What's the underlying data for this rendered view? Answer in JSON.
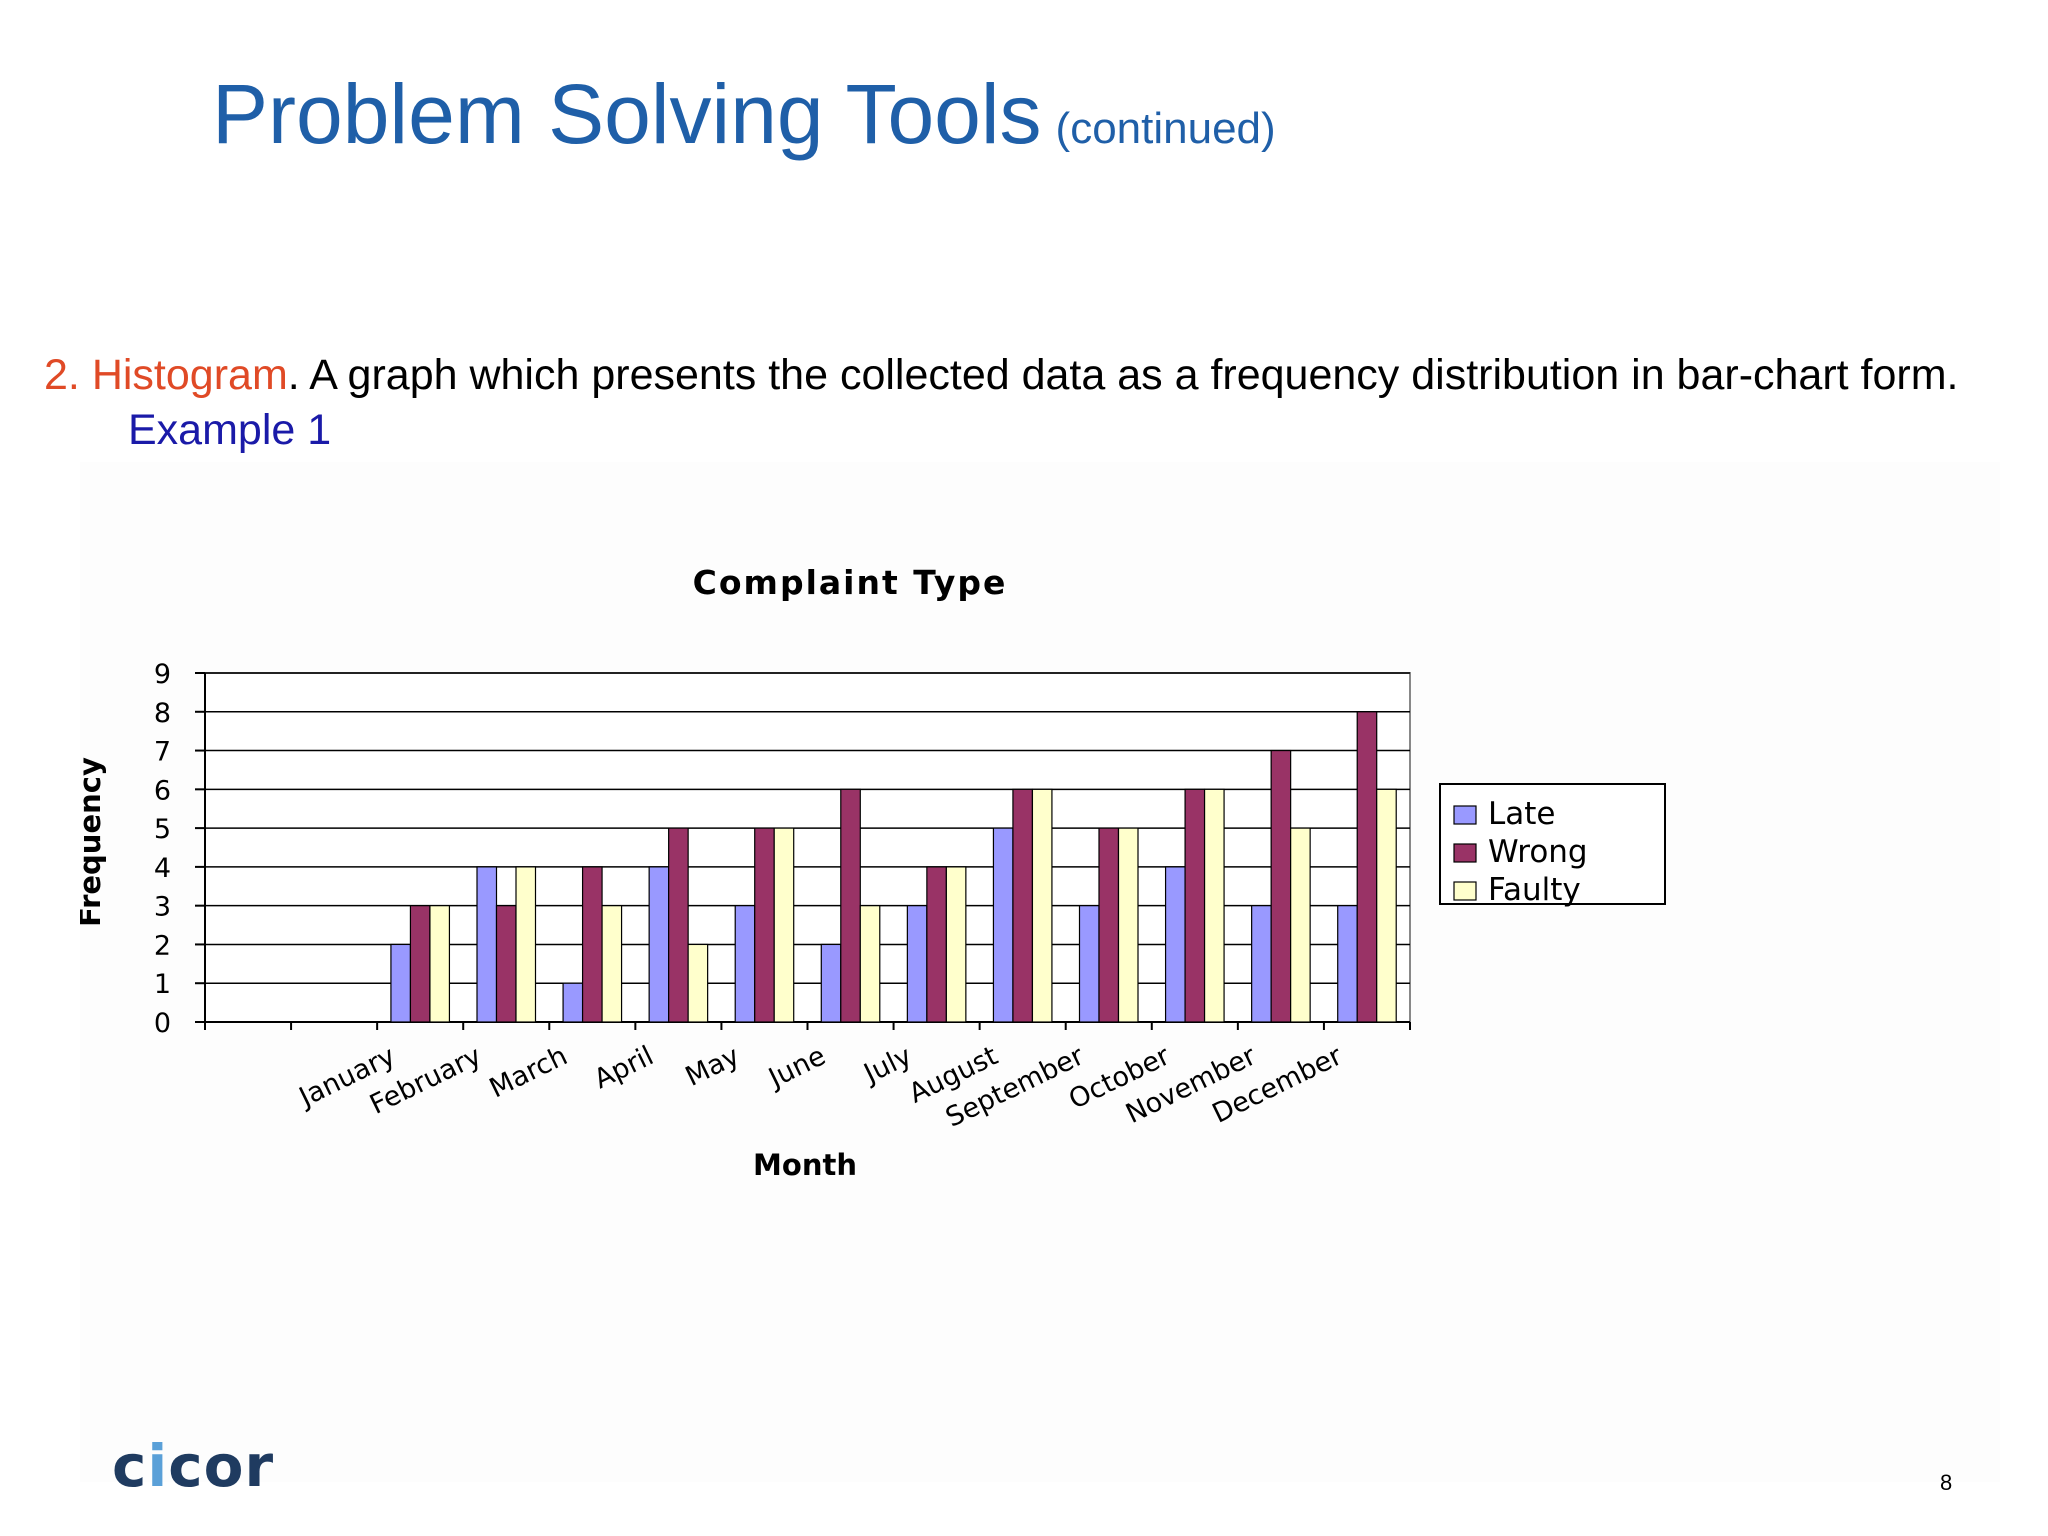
{
  "slide": {
    "title": "Problem Solving Tools",
    "title_sub": "(continued)",
    "item_number": "2.",
    "item_term": "Histogram",
    "item_text": ".  A graph which presents the collected data as a frequency distribution in bar-chart form.",
    "item_link": "Example 1",
    "page_number": "8",
    "logo": {
      "before": "c",
      "accent": "i",
      "after": "cor"
    }
  },
  "colors": {
    "title": "#1f5fa8",
    "term": "#e04a26",
    "link": "#1a1aa8"
  },
  "chart_data": {
    "type": "bar",
    "title": "Complaint Type",
    "xlabel": "Month",
    "ylabel": "Frequency",
    "ylim": [
      0,
      9
    ],
    "yticks": [
      0,
      1,
      2,
      3,
      4,
      5,
      6,
      7,
      8,
      9
    ],
    "grid": true,
    "legend_position": "right",
    "categories": [
      "",
      "",
      "January",
      "February",
      "March",
      "April",
      "May",
      "June",
      "July",
      "August",
      "September",
      "October",
      "November",
      "December"
    ],
    "series": [
      {
        "name": "Late",
        "color": "#9999ff",
        "values": [
          null,
          null,
          2,
          4,
          1,
          4,
          3,
          2,
          3,
          5,
          3,
          4,
          3,
          3
        ]
      },
      {
        "name": "Wrong",
        "color": "#993366",
        "values": [
          null,
          null,
          3,
          3,
          4,
          5,
          5,
          6,
          4,
          6,
          5,
          6,
          7,
          8
        ]
      },
      {
        "name": "Faulty",
        "color": "#ffffcc",
        "values": [
          null,
          null,
          3,
          4,
          3,
          2,
          5,
          3,
          4,
          6,
          5,
          6,
          5,
          6
        ]
      }
    ]
  }
}
